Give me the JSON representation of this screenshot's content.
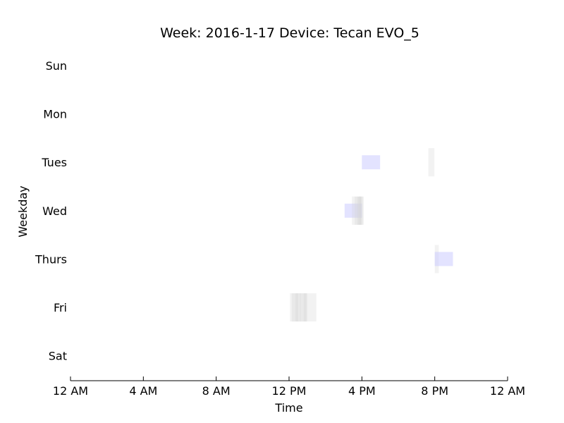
{
  "chart_data": {
    "type": "timeline",
    "title": "Week: 2016-1-17  Device: Tecan EVO_5",
    "xlabel": "Time",
    "ylabel": "Weekday",
    "x_range_hours": [
      0,
      24
    ],
    "x_ticks": [
      {
        "hour": 0,
        "label": "12 AM"
      },
      {
        "hour": 4,
        "label": "4 AM"
      },
      {
        "hour": 8,
        "label": "8 AM"
      },
      {
        "hour": 12,
        "label": "12 PM"
      },
      {
        "hour": 16,
        "label": "4 PM"
      },
      {
        "hour": 20,
        "label": "8 PM"
      },
      {
        "hour": 24,
        "label": "12 AM"
      }
    ],
    "days": [
      "Sun",
      "Mon",
      "Tues",
      "Wed",
      "Thurs",
      "Fri",
      "Sat"
    ],
    "grid": false,
    "colors": {
      "idle": "#d3d3d3",
      "busy": "#c8c8ff"
    },
    "events": [
      {
        "day": "Tues",
        "start": 16.0,
        "end": 17.0,
        "kind": "busy"
      },
      {
        "day": "Tues",
        "start": 19.65,
        "end": 19.98,
        "kind": "idle"
      },
      {
        "day": "Wed",
        "start": 15.05,
        "end": 16.0,
        "kind": "busy"
      },
      {
        "day": "Wed",
        "start": 15.45,
        "end": 16.1,
        "kind": "idle"
      },
      {
        "day": "Wed",
        "start": 15.6,
        "end": 15.95,
        "kind": "idle"
      },
      {
        "day": "Wed",
        "start": 15.75,
        "end": 15.98,
        "kind": "idle"
      },
      {
        "day": "Wed",
        "start": 15.85,
        "end": 16.05,
        "kind": "idle"
      },
      {
        "day": "Thurs",
        "start": 20.0,
        "end": 20.22,
        "kind": "idle"
      },
      {
        "day": "Thurs",
        "start": 20.0,
        "end": 21.0,
        "kind": "busy"
      },
      {
        "day": "Fri",
        "start": 12.05,
        "end": 13.5,
        "kind": "idle"
      },
      {
        "day": "Fri",
        "start": 12.15,
        "end": 12.5,
        "kind": "idle"
      },
      {
        "day": "Fri",
        "start": 12.35,
        "end": 12.65,
        "kind": "idle"
      },
      {
        "day": "Fri",
        "start": 12.6,
        "end": 12.95,
        "kind": "idle"
      },
      {
        "day": "Fri",
        "start": 12.8,
        "end": 13.0,
        "kind": "idle"
      }
    ]
  }
}
